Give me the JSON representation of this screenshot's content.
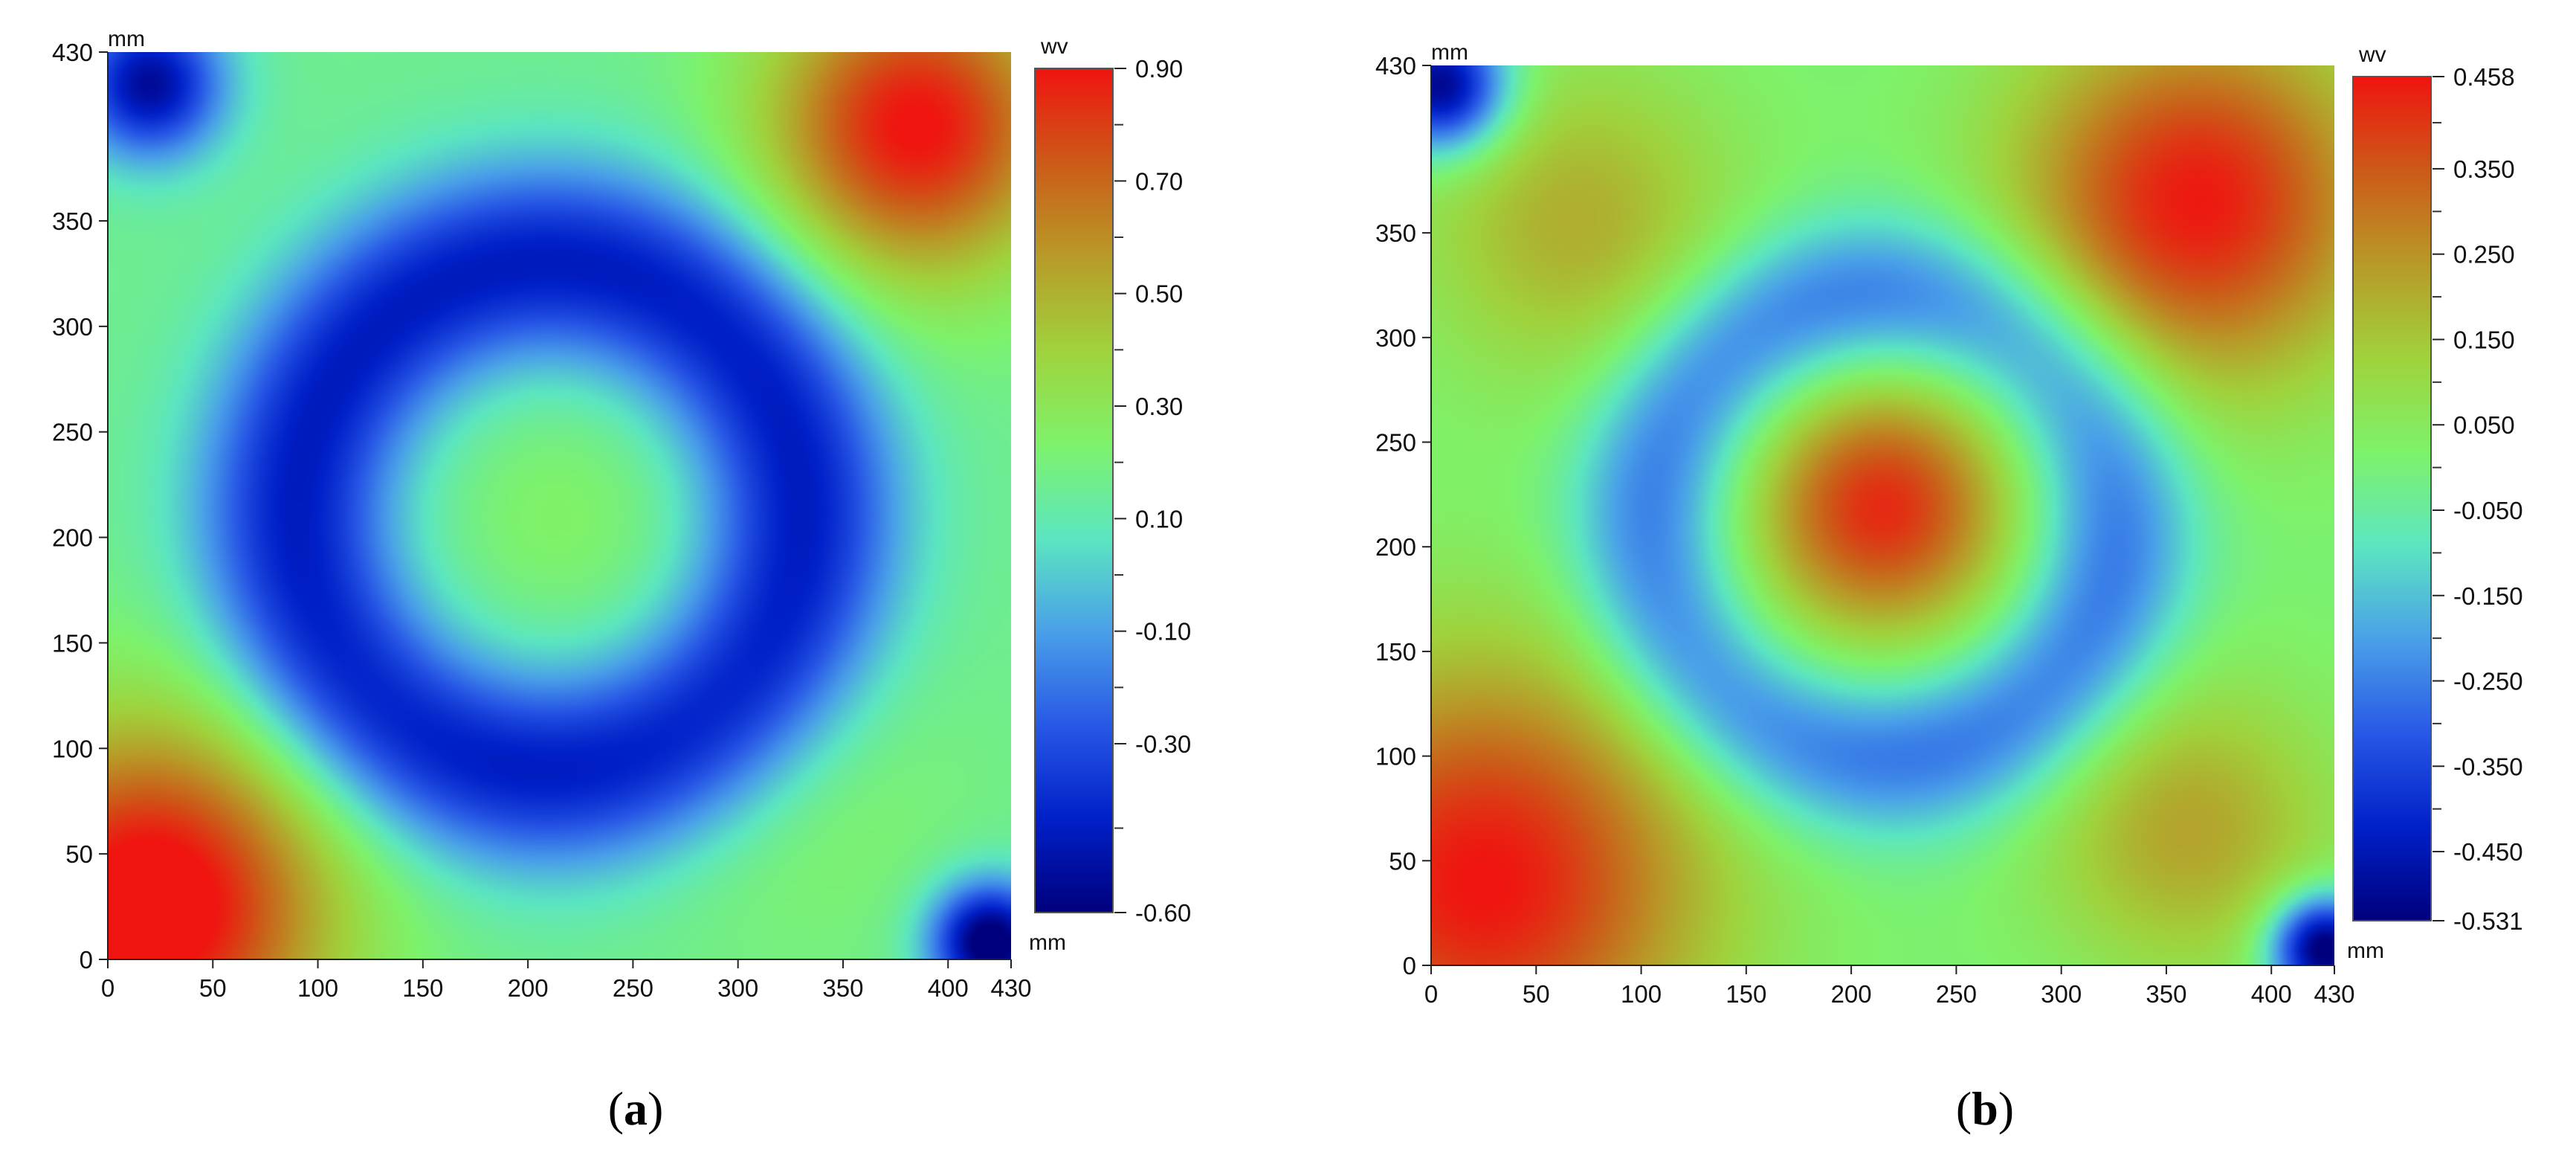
{
  "panels": [
    {
      "label_open": "(",
      "label_letter": "a",
      "label_close": ")"
    },
    {
      "label_open": "(",
      "label_letter": "b",
      "label_close": ")"
    }
  ],
  "chart_data": [
    {
      "type": "heatmap",
      "title": "",
      "xlabel": "mm",
      "ylabel": "mm",
      "colorbar_label": "wv",
      "xlim": [
        0,
        430
      ],
      "ylim": [
        0,
        430
      ],
      "x_tick_labels": [
        "0",
        "50",
        "100",
        "150",
        "200",
        "250",
        "300",
        "350",
        "400",
        "430"
      ],
      "y_tick_labels": [
        "0",
        "50",
        "100",
        "150",
        "200",
        "250",
        "300",
        "350",
        "430"
      ],
      "colorbar_range": [
        -0.6,
        0.9
      ],
      "colorbar_tick_labels": [
        "0.90",
        "0.70",
        "0.50",
        "0.30",
        "0.10",
        "-0.10",
        "-0.30",
        "-0.60"
      ],
      "colormap": [
        "#00007c",
        "#0020c8",
        "#2858e6",
        "#4aa0e8",
        "#5ce6c0",
        "#7ef26a",
        "#a0d23c",
        "#b89a28",
        "#cc5a18",
        "#f01410"
      ],
      "field": {
        "base": 0.16,
        "components": [
          {
            "kind": "ring",
            "cx": 210,
            "cy": 210,
            "r": 120,
            "width": 48,
            "amp": -0.62
          },
          {
            "kind": "blob",
            "cx": 215,
            "cy": 210,
            "sigma": 40,
            "amp": 0.08
          },
          {
            "kind": "blob",
            "cx": 20,
            "cy": 25,
            "sigma": 60,
            "amp": 0.85
          },
          {
            "kind": "blob",
            "cx": 385,
            "cy": 395,
            "sigma": 50,
            "amp": 0.75
          },
          {
            "kind": "blob",
            "cx": 330,
            "cy": 75,
            "sigma": 55,
            "amp": 0.08
          },
          {
            "kind": "blob",
            "cx": 20,
            "cy": 415,
            "sigma": 25,
            "amp": -0.7
          },
          {
            "kind": "blob",
            "cx": 420,
            "cy": 8,
            "sigma": 20,
            "amp": -0.85
          }
        ]
      }
    },
    {
      "type": "heatmap",
      "title": "",
      "xlabel": "mm",
      "ylabel": "mm",
      "colorbar_label": "wv",
      "xlim": [
        0,
        430
      ],
      "ylim": [
        0,
        430
      ],
      "x_tick_labels": [
        "0",
        "50",
        "100",
        "150",
        "200",
        "250",
        "300",
        "350",
        "400",
        "430"
      ],
      "y_tick_labels": [
        "0",
        "50",
        "100",
        "150",
        "200",
        "250",
        "300",
        "350",
        "430"
      ],
      "colorbar_range": [
        -0.531,
        0.458
      ],
      "colorbar_tick_labels": [
        "0.458",
        "0.350",
        "0.250",
        "0.150",
        "0.050",
        "-0.050",
        "-0.150",
        "-0.250",
        "-0.350",
        "-0.450",
        "-0.531"
      ],
      "colormap": [
        "#00007c",
        "#0020c8",
        "#2858e6",
        "#4aa0e8",
        "#5ce6c0",
        "#7ef26a",
        "#a0d23c",
        "#b89a28",
        "#cc5a18",
        "#f01410"
      ],
      "field": {
        "base": 0.0,
        "components": [
          {
            "kind": "ring",
            "cx": 215,
            "cy": 210,
            "r": 110,
            "width": 40,
            "amp": -0.28
          },
          {
            "kind": "blob",
            "cx": 215,
            "cy": 218,
            "sigma": 42,
            "amp": 0.42
          },
          {
            "kind": "blob",
            "cx": 25,
            "cy": 40,
            "sigma": 75,
            "amp": 0.46
          },
          {
            "kind": "blob",
            "cx": 365,
            "cy": 365,
            "sigma": 62,
            "amp": 0.45
          },
          {
            "kind": "blob",
            "cx": 360,
            "cy": 65,
            "sigma": 50,
            "amp": 0.22
          },
          {
            "kind": "blob",
            "cx": 70,
            "cy": 355,
            "sigma": 55,
            "amp": 0.2
          },
          {
            "kind": "blob",
            "cx": 5,
            "cy": 420,
            "sigma": 22,
            "amp": -0.55
          },
          {
            "kind": "blob",
            "cx": 425,
            "cy": 8,
            "sigma": 18,
            "amp": -0.6
          }
        ]
      }
    }
  ]
}
